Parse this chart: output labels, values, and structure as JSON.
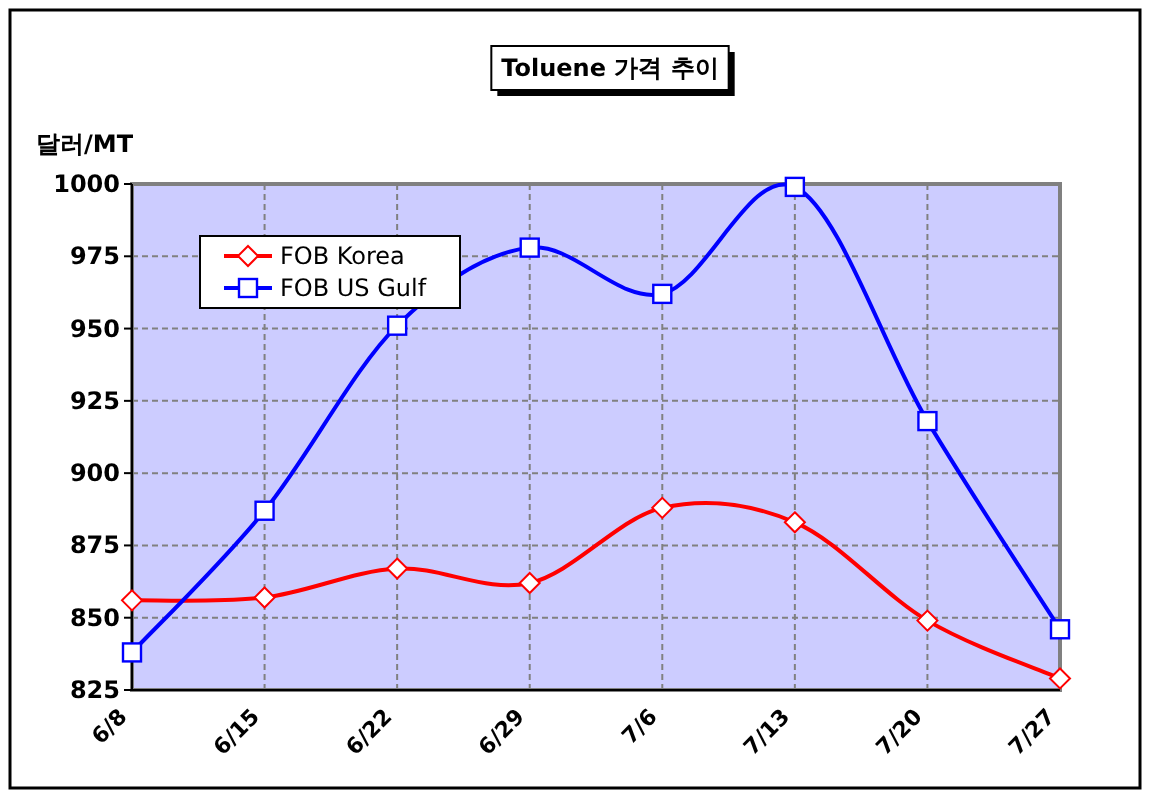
{
  "chart_data": {
    "type": "line",
    "title": "Toluene 가격 추이",
    "ylabel": "달러/MT",
    "categories": [
      "6/8",
      "6/15",
      "6/22",
      "6/29",
      "7/6",
      "7/13",
      "7/20",
      "7/27"
    ],
    "series": [
      {
        "name": "FOB Korea",
        "color": "#ff0000",
        "marker": "diamond",
        "values": [
          856,
          857,
          867,
          862,
          888,
          883,
          849,
          829
        ]
      },
      {
        "name": "FOB US Gulf",
        "color": "#0000ff",
        "marker": "square",
        "values": [
          838,
          887,
          951,
          978,
          962,
          999,
          918,
          846
        ]
      }
    ],
    "ylim": [
      825,
      1000
    ],
    "yticks": [
      825,
      850,
      875,
      900,
      925,
      950,
      975,
      1000
    ],
    "grid": true,
    "legend": "top left",
    "line_style": "solid"
  }
}
